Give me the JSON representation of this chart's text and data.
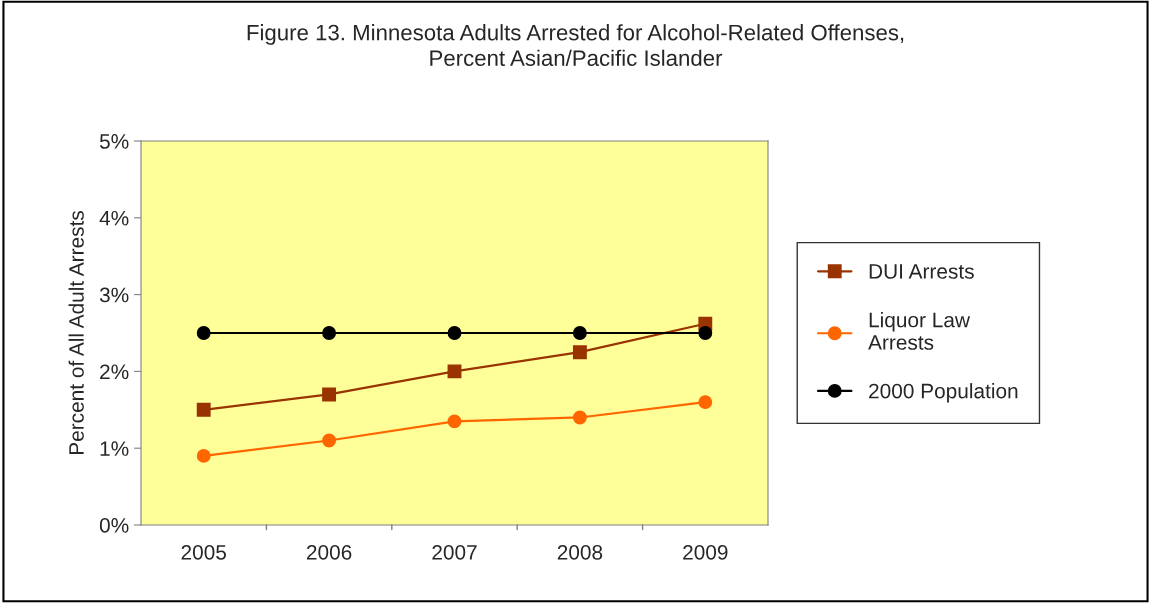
{
  "chart_data": {
    "type": "line",
    "title": "Figure 13. Minnesota Adults Arrested for Alcohol-Related Offenses,\nPercent Asian/Pacific Islander",
    "ylabel": "Percent of All Adult Arrests",
    "categories": [
      "2005",
      "2006",
      "2007",
      "2008",
      "2009"
    ],
    "series": [
      {
        "name": "DUI Arrests",
        "color": "#993300",
        "marker": "square",
        "values": [
          1.5,
          1.7,
          2.0,
          2.25,
          2.62
        ]
      },
      {
        "name": "Liquor Law\nArrests",
        "color": "#ff6600",
        "marker": "circle",
        "values": [
          0.9,
          1.1,
          1.35,
          1.4,
          1.6
        ]
      },
      {
        "name": "2000 Population",
        "color": "#000000",
        "marker": "circle",
        "values": [
          2.5,
          2.5,
          2.5,
          2.5,
          2.5
        ]
      }
    ],
    "ylim": [
      0,
      5
    ],
    "yticks": [
      {
        "value": 0,
        "label": "0%"
      },
      {
        "value": 1,
        "label": "1%"
      },
      {
        "value": 2,
        "label": "2%"
      },
      {
        "value": 3,
        "label": "3%"
      },
      {
        "value": 4,
        "label": "4%"
      },
      {
        "value": 5,
        "label": "5%"
      }
    ],
    "grid": false,
    "legend": "right",
    "line_style": "solid"
  }
}
